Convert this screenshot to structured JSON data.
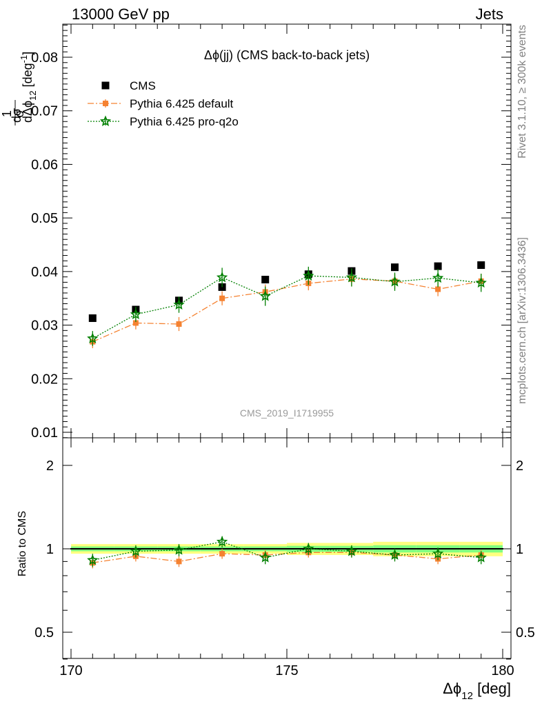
{
  "header": {
    "left": "13000 GeV pp",
    "right": "Jets"
  },
  "side_labels": {
    "rivet": "Rivet 3.1.10, ≥ 300k events",
    "mcplots": "mcplots.cern.ch [arXiv:1306.3436]"
  },
  "colors": {
    "cms": "#000000",
    "default": "#f58231",
    "proq2o": "#008000",
    "band_outer": "#ffff80",
    "band_inner": "#80ff80"
  },
  "chart_data": [
    {
      "type": "scatter",
      "panel": "main",
      "title": "Δϕ(jj) (CMS back-to-back jets)",
      "watermark": "CMS_2019_I1719955",
      "ylabel": "1/σ dσ/dΔϕ_12 [deg^-1]",
      "ylim": [
        0.0085,
        0.0865
      ],
      "yticks": [
        "0.01",
        "0.02",
        "0.03",
        "0.04",
        "0.05",
        "0.06",
        "0.07",
        "0.08"
      ],
      "xlim": [
        170,
        180
      ],
      "grid": false,
      "legend_position": "top-left",
      "x": [
        170.5,
        171.5,
        172.5,
        173.5,
        174.5,
        175.5,
        176.5,
        177.5,
        178.5,
        179.5
      ],
      "series": [
        {
          "name": "CMS",
          "style": "data",
          "marker": "square",
          "values": [
            0.0313,
            0.0329,
            0.0346,
            0.0371,
            0.0385,
            0.0395,
            0.0401,
            0.0408,
            0.041,
            0.0412
          ],
          "errors": [
            0.0003,
            0.0003,
            0.0003,
            0.0003,
            0.0003,
            0.0003,
            0.0003,
            0.0003,
            0.0003,
            0.0003
          ]
        },
        {
          "name": "Pythia 6.425 default",
          "style": "dashdot",
          "marker": "square",
          "values": [
            0.0269,
            0.0304,
            0.0302,
            0.035,
            0.0362,
            0.0378,
            0.0386,
            0.0382,
            0.0367,
            0.0382
          ],
          "errors": [
            0.0012,
            0.0012,
            0.0013,
            0.0013,
            0.0014,
            0.0013,
            0.0013,
            0.0014,
            0.0013,
            0.0014
          ]
        },
        {
          "name": "Pythia 6.425 pro-q2o",
          "style": "dotted",
          "marker": "star",
          "values": [
            0.0275,
            0.032,
            0.0338,
            0.0389,
            0.0354,
            0.0392,
            0.0389,
            0.0381,
            0.0388,
            0.0379
          ],
          "errors": [
            0.0014,
            0.0014,
            0.0015,
            0.0018,
            0.0018,
            0.0017,
            0.0017,
            0.0017,
            0.0017,
            0.0017
          ]
        }
      ]
    },
    {
      "type": "scatter",
      "panel": "ratio",
      "ylabel": "Ratio to CMS",
      "ylim": [
        0.4,
        2.4
      ],
      "yscale": "log",
      "yticks": [
        "0.5",
        "1",
        "2"
      ],
      "xlabel": "Δϕ_12 [deg]",
      "xticks": [
        "170",
        "175",
        "180"
      ],
      "xlim": [
        170,
        180
      ],
      "reference": 1,
      "band_halfwidth": [
        0.04,
        0.04,
        0.04,
        0.04,
        0.04,
        0.05,
        0.05,
        0.06,
        0.06,
        0.06
      ],
      "x": [
        170.5,
        171.5,
        172.5,
        173.5,
        174.5,
        175.5,
        176.5,
        177.5,
        178.5,
        179.5
      ],
      "series": [
        {
          "name": "Pythia 6.425 default",
          "style": "dashdot",
          "marker": "square",
          "values": [
            0.89,
            0.94,
            0.9,
            0.96,
            0.95,
            0.97,
            0.97,
            0.95,
            0.92,
            0.95
          ],
          "errors": [
            0.04,
            0.04,
            0.04,
            0.04,
            0.04,
            0.04,
            0.04,
            0.04,
            0.04,
            0.04
          ]
        },
        {
          "name": "Pythia 6.425 pro-q2o",
          "style": "dotted",
          "marker": "star",
          "values": [
            0.91,
            0.98,
            0.99,
            1.06,
            0.93,
            1.0,
            0.98,
            0.95,
            0.96,
            0.93
          ],
          "errors": [
            0.05,
            0.05,
            0.05,
            0.05,
            0.05,
            0.05,
            0.05,
            0.05,
            0.05,
            0.05
          ]
        }
      ]
    }
  ]
}
